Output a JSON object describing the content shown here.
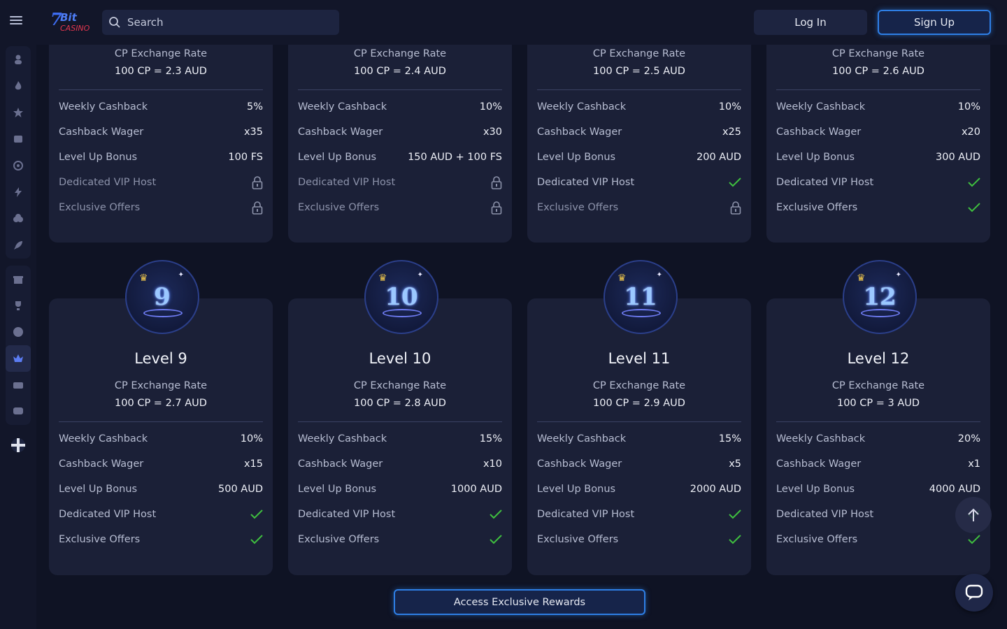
{
  "header": {
    "search_placeholder": "Search",
    "login_label": "Log In",
    "signup_label": "Sign Up",
    "logo_text": "7Bit CASINO"
  },
  "labels": {
    "cp_rate": "CP Exchange Rate",
    "weekly_cashback": "Weekly Cashback",
    "cashback_wager": "Cashback Wager",
    "level_up_bonus": "Level Up Bonus",
    "vip_host": "Dedicated VIP Host",
    "exclusive_offers": "Exclusive Offers"
  },
  "top_cards": [
    {
      "cp_value": "100 CP = 2.3 AUD",
      "weekly_cashback": "5%",
      "cashback_wager": "x35",
      "level_up_bonus": "100 FS",
      "vip_host": "locked",
      "exclusive_offers": "locked"
    },
    {
      "cp_value": "100 CP = 2.4 AUD",
      "weekly_cashback": "10%",
      "cashback_wager": "x30",
      "level_up_bonus": "150 AUD + 100 FS",
      "vip_host": "locked",
      "exclusive_offers": "locked"
    },
    {
      "cp_value": "100 CP = 2.5 AUD",
      "weekly_cashback": "10%",
      "cashback_wager": "x25",
      "level_up_bonus": "200 AUD",
      "vip_host": "check",
      "exclusive_offers": "locked"
    },
    {
      "cp_value": "100 CP = 2.6 AUD",
      "weekly_cashback": "10%",
      "cashback_wager": "x20",
      "level_up_bonus": "300 AUD",
      "vip_host": "check",
      "exclusive_offers": "check"
    }
  ],
  "bottom_cards": [
    {
      "badge": "9",
      "level": "Level 9",
      "cp_value": "100 CP = 2.7 AUD",
      "weekly_cashback": "10%",
      "cashback_wager": "x15",
      "level_up_bonus": "500 AUD",
      "vip_host": "check",
      "exclusive_offers": "check"
    },
    {
      "badge": "10",
      "level": "Level 10",
      "cp_value": "100 CP = 2.8 AUD",
      "weekly_cashback": "15%",
      "cashback_wager": "x10",
      "level_up_bonus": "1000 AUD",
      "vip_host": "check",
      "exclusive_offers": "check"
    },
    {
      "badge": "11",
      "level": "Level 11",
      "cp_value": "100 CP = 2.9 AUD",
      "weekly_cashback": "15%",
      "cashback_wager": "x5",
      "level_up_bonus": "2000 AUD",
      "vip_host": "check",
      "exclusive_offers": "check"
    },
    {
      "badge": "12",
      "level": "Level 12",
      "cp_value": "100 CP = 3 AUD",
      "weekly_cashback": "20%",
      "cashback_wager": "x1",
      "level_up_bonus": "4000 AUD",
      "vip_host": "check",
      "exclusive_offers": "check"
    }
  ],
  "access_button": "Access Exclusive Rewards",
  "sidebar_icons": [
    "user-icon",
    "fire-icon",
    "star-icon",
    "slots-icon",
    "target-icon",
    "lightning-icon",
    "cards-icon",
    "rocket-icon",
    "gift-icon",
    "trophy-icon",
    "vip-icon",
    "crown-icon",
    "wallet-icon",
    "chat-bubble-icon",
    "language-flag-icon"
  ],
  "colors": {
    "accent": "#2e7fe6",
    "check": "#3fbf3f",
    "card": "#1b2037"
  }
}
